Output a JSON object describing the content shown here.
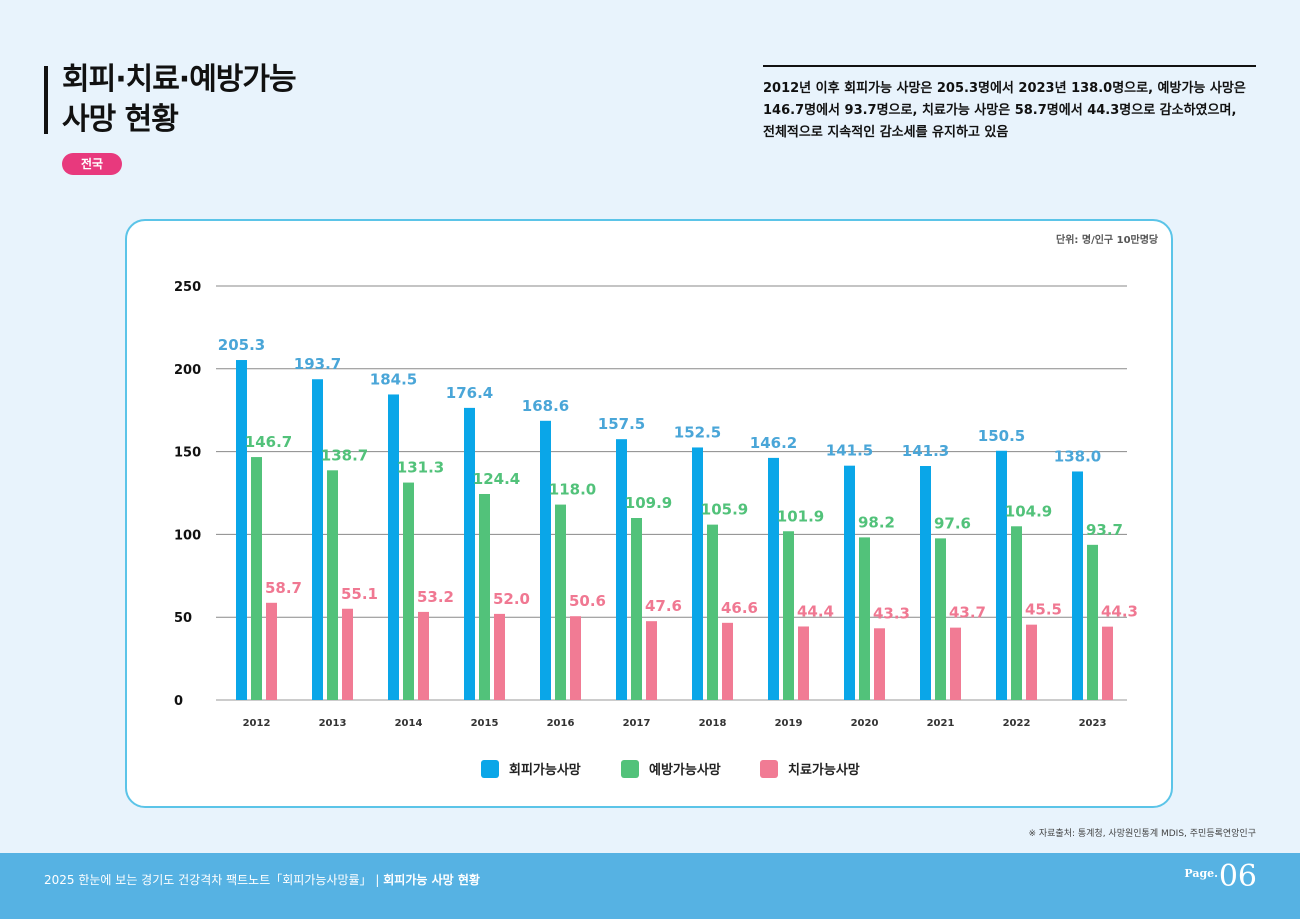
{
  "header": {
    "title_line1": "회피·치료·예방가능",
    "title_line2": "사망 현황",
    "badge": "전국",
    "summary_lines": [
      "2012년 이후 회피가능 사망은 205.3명에서 2023년 138.0명으로, 예방가능 사망은",
      "146.7명에서 93.7명으로, 치료가능 사망은 58.7명에서 44.3명으로 감소하였으며,",
      "전체적으로 지속적인 감소세를 유지하고 있음"
    ]
  },
  "chart_data": {
    "type": "bar",
    "unit": "단위: 명/인구 10만명당",
    "categories": [
      "2012",
      "2013",
      "2014",
      "2015",
      "2016",
      "2017",
      "2018",
      "2019",
      "2020",
      "2021",
      "2022",
      "2023"
    ],
    "ylim": [
      0,
      250
    ],
    "yticks": [
      0,
      50,
      100,
      150,
      200,
      250
    ],
    "grid": true,
    "legend_position": "bottom",
    "series": [
      {
        "name": "회피가능사망",
        "color": "#0aa6e8",
        "label_color": "#4aa6d8",
        "values": [
          205.3,
          193.7,
          184.5,
          176.4,
          168.6,
          157.5,
          152.5,
          146.2,
          141.5,
          141.3,
          150.5,
          138.0
        ]
      },
      {
        "name": "예방가능사망",
        "color": "#52c27a",
        "label_color": "#52c27a",
        "values": [
          146.7,
          138.7,
          131.3,
          124.4,
          118.0,
          109.9,
          105.9,
          101.9,
          98.2,
          97.6,
          104.9,
          93.7
        ]
      },
      {
        "name": "치료가능사망",
        "color": "#f17b94",
        "label_color": "#f07892",
        "values": [
          58.7,
          55.1,
          53.2,
          52.0,
          50.6,
          47.6,
          46.6,
          44.4,
          43.3,
          43.7,
          45.5,
          44.3
        ]
      }
    ]
  },
  "source": "※ 자료출처: 통계청, 사망원인통계 MDIS, 주민등록연앙인구",
  "footer": {
    "text": "2025 한눈에 보는 경기도 건강격차 팩트노트「회피가능사망률」",
    "sep": "|",
    "section": "회피가능 사망 현황",
    "page_label": "Page.",
    "page_number": "06"
  }
}
